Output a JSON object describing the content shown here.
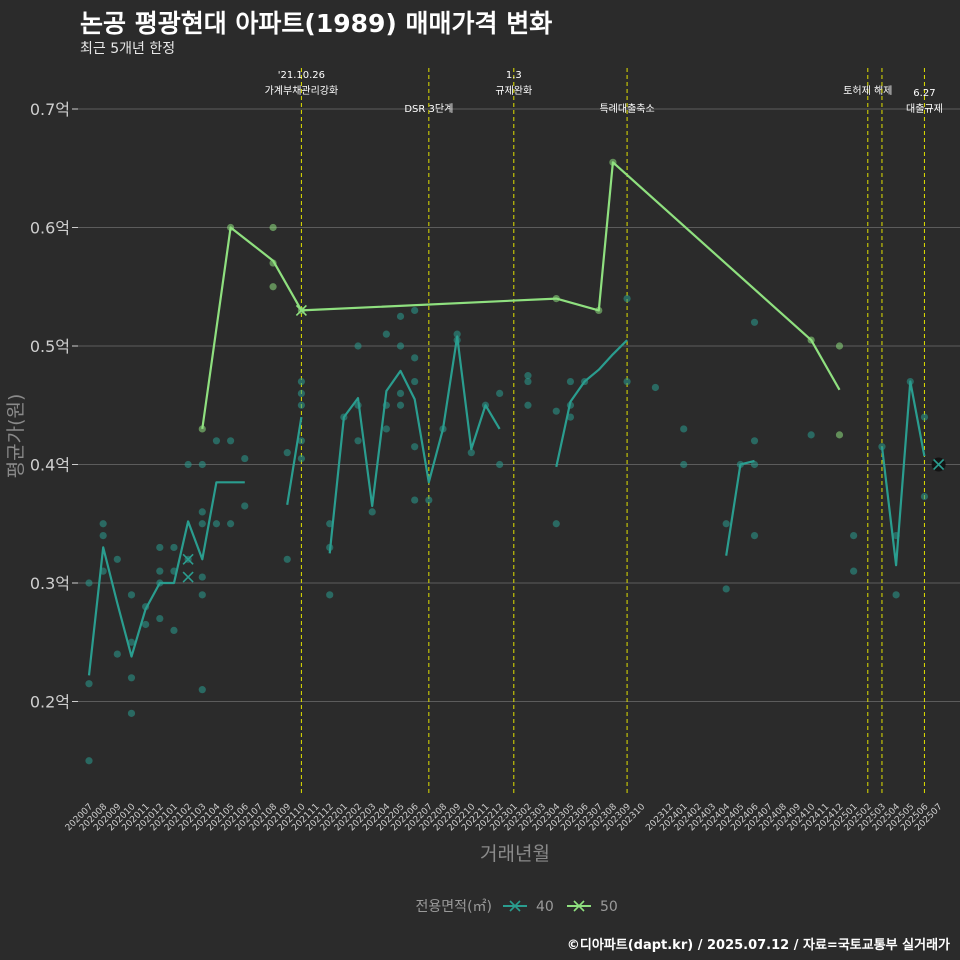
{
  "title": "논공 평광현대 아파트(1989) 매매가격 변화",
  "subtitle": "최근 5개년 한정",
  "caption": "©디아파트(dapt.kr) / 2025.07.12 / 자료=국토교통부 실거래가",
  "colors": {
    "background": "#2b2b2b",
    "grid": "#5c5c5c",
    "event_line": "#e0e000",
    "series_40": "#2a9d8f",
    "series_50": "#8fe07f"
  },
  "chart_data": {
    "type": "line",
    "title": "논공 평광현대 아파트(1989) 매매가격 변화",
    "subtitle": "최근 5개년 한정",
    "xlabel": "거래년월",
    "ylabel": "평균가(원)",
    "ylim": [
      0.12,
      0.735
    ],
    "yticks": [
      0.2,
      0.3,
      0.4,
      0.5,
      0.6,
      0.7
    ],
    "ytick_labels": [
      "0.2억",
      "0.3억",
      "0.4억",
      "0.5억",
      "0.6억",
      "0.7억"
    ],
    "grid": true,
    "legend_title": "전용면적(㎡)",
    "legend_position": "bottom",
    "x_labels": [
      "202007",
      "202008",
      "202009",
      "202010",
      "202011",
      "202012",
      "202101",
      "202102",
      "202103",
      "202104",
      "202105",
      "202106",
      "202107",
      "202108",
      "202109",
      "202110",
      "202111",
      "202112",
      "202201",
      "202202",
      "202203",
      "202204",
      "202205",
      "202206",
      "202207",
      "202208",
      "202209",
      "202210",
      "202211",
      "202212",
      "202301",
      "202302",
      "202303",
      "202304",
      "202305",
      "202306",
      "202307",
      "202308",
      "202309",
      "202310",
      "202312",
      "202401",
      "202402",
      "202403",
      "202404",
      "202405",
      "202406",
      "202407",
      "202408",
      "202409",
      "202410",
      "202411",
      "202412",
      "202501",
      "202502",
      "202503",
      "202504",
      "202505",
      "202506",
      "202507"
    ],
    "x_months": [
      0,
      1,
      2,
      3,
      4,
      5,
      6,
      7,
      8,
      9,
      10,
      11,
      12,
      13,
      14,
      15,
      16,
      17,
      18,
      19,
      20,
      21,
      22,
      23,
      24,
      25,
      26,
      27,
      28,
      29,
      30,
      31,
      32,
      33,
      34,
      35,
      36,
      37,
      38,
      39,
      41,
      42,
      43,
      44,
      45,
      46,
      47,
      48,
      49,
      50,
      51,
      52,
      53,
      54,
      55,
      56,
      57,
      58,
      59,
      60
    ],
    "events": [
      {
        "month": 15,
        "label": "'21.10.26\n가계부채관리강화",
        "row": 1
      },
      {
        "month": 24,
        "label": "DSR 3단계",
        "row": 2
      },
      {
        "month": 30,
        "label": "1.3\n규제완화",
        "row": 1
      },
      {
        "month": 38,
        "label": "특례대출축소",
        "row": 2
      },
      {
        "month": 55,
        "label": "토허제 해제",
        "row": 1
      },
      {
        "month": 56,
        "label": "",
        "row": 0
      },
      {
        "month": 59,
        "label": "6.27\n대출규제",
        "row": 2
      }
    ],
    "series": [
      {
        "name": "40",
        "segments": [
          [
            [
              0,
              0.222
            ],
            [
              1,
              0.33
            ],
            [
              2,
              0.283
            ],
            [
              3,
              0.238
            ],
            [
              4,
              0.278
            ],
            [
              5,
              0.3
            ],
            [
              6,
              0.3
            ],
            [
              7,
              0.352
            ],
            [
              8,
              0.32
            ],
            [
              9,
              0.385
            ],
            [
              10,
              0.385
            ],
            [
              11,
              0.385
            ]
          ],
          [
            [
              14,
              0.366
            ],
            [
              15,
              0.44
            ]
          ],
          [
            [
              17,
              0.325
            ],
            [
              18,
              0.44
            ],
            [
              19,
              0.456
            ],
            [
              20,
              0.365
            ],
            [
              21,
              0.462
            ],
            [
              22,
              0.479
            ],
            [
              23,
              0.455
            ],
            [
              24,
              0.385
            ],
            [
              25,
              0.43
            ],
            [
              26,
              0.508
            ],
            [
              27,
              0.413
            ],
            [
              28,
              0.45
            ],
            [
              29,
              0.43
            ]
          ],
          [
            [
              33,
              0.398
            ],
            [
              34,
              0.453
            ],
            [
              35,
              0.47
            ],
            [
              36,
              0.48
            ],
            [
              37,
              0.493
            ],
            [
              38,
              0.505
            ]
          ],
          [
            [
              45,
              0.323
            ],
            [
              46,
              0.4
            ],
            [
              47,
              0.403
            ]
          ],
          [
            [
              56,
              0.415
            ],
            [
              57,
              0.315
            ],
            [
              58,
              0.47
            ],
            [
              59,
              0.407
            ]
          ]
        ],
        "points": [
          [
            0,
            0.3
          ],
          [
            0,
            0.215
          ],
          [
            0,
            0.15
          ],
          [
            1,
            0.35
          ],
          [
            1,
            0.34
          ],
          [
            1,
            0.31
          ],
          [
            2,
            0.32
          ],
          [
            2,
            0.24
          ],
          [
            3,
            0.29
          ],
          [
            3,
            0.25
          ],
          [
            3,
            0.22
          ],
          [
            3,
            0.19
          ],
          [
            4,
            0.28
          ],
          [
            4,
            0.265
          ],
          [
            5,
            0.33
          ],
          [
            5,
            0.31
          ],
          [
            5,
            0.3
          ],
          [
            5,
            0.27
          ],
          [
            6,
            0.33
          ],
          [
            6,
            0.31
          ],
          [
            6,
            0.26
          ],
          [
            7,
            0.4
          ],
          [
            7,
            0.32
          ],
          [
            8,
            0.4
          ],
          [
            8,
            0.36
          ],
          [
            8,
            0.35
          ],
          [
            8,
            0.305
          ],
          [
            8,
            0.29
          ],
          [
            8,
            0.21
          ],
          [
            9,
            0.42
          ],
          [
            9,
            0.35
          ],
          [
            10,
            0.42
          ],
          [
            10,
            0.35
          ],
          [
            11,
            0.405
          ],
          [
            11,
            0.365
          ],
          [
            14,
            0.41
          ],
          [
            14,
            0.32
          ],
          [
            15,
            0.47
          ],
          [
            15,
            0.46
          ],
          [
            15,
            0.45
          ],
          [
            15,
            0.42
          ],
          [
            15,
            0.405
          ],
          [
            17,
            0.35
          ],
          [
            17,
            0.33
          ],
          [
            17,
            0.29
          ],
          [
            18,
            0.44
          ],
          [
            19,
            0.5
          ],
          [
            19,
            0.45
          ],
          [
            19,
            0.42
          ],
          [
            20,
            0.36
          ],
          [
            21,
            0.51
          ],
          [
            21,
            0.45
          ],
          [
            21,
            0.43
          ],
          [
            22,
            0.525
          ],
          [
            22,
            0.5
          ],
          [
            22,
            0.46
          ],
          [
            22,
            0.45
          ],
          [
            23,
            0.53
          ],
          [
            23,
            0.49
          ],
          [
            23,
            0.47
          ],
          [
            23,
            0.415
          ],
          [
            23,
            0.37
          ],
          [
            24,
            0.37
          ],
          [
            25,
            0.43
          ],
          [
            26,
            0.51
          ],
          [
            26,
            0.505
          ],
          [
            27,
            0.41
          ],
          [
            28,
            0.45
          ],
          [
            29,
            0.46
          ],
          [
            29,
            0.4
          ],
          [
            31,
            0.475
          ],
          [
            31,
            0.47
          ],
          [
            31,
            0.45
          ],
          [
            33,
            0.445
          ],
          [
            33,
            0.35
          ],
          [
            34,
            0.47
          ],
          [
            34,
            0.45
          ],
          [
            34,
            0.44
          ],
          [
            35,
            0.47
          ],
          [
            38,
            0.54
          ],
          [
            38,
            0.47
          ],
          [
            40,
            0.465
          ],
          [
            42,
            0.43
          ],
          [
            42,
            0.4
          ],
          [
            45,
            0.35
          ],
          [
            45,
            0.295
          ],
          [
            46,
            0.4
          ],
          [
            47,
            0.52
          ],
          [
            47,
            0.42
          ],
          [
            47,
            0.4
          ],
          [
            47,
            0.34
          ],
          [
            51,
            0.425
          ],
          [
            54,
            0.34
          ],
          [
            54,
            0.31
          ],
          [
            56,
            0.415
          ],
          [
            57,
            0.34
          ],
          [
            57,
            0.29
          ],
          [
            58,
            0.47
          ],
          [
            59,
            0.44
          ],
          [
            59,
            0.373
          ],
          [
            60,
            0.4
          ]
        ],
        "last_point": [
          60,
          0.4
        ],
        "cross_points": [
          [
            7,
            0.32
          ],
          [
            7,
            0.305
          ]
        ]
      },
      {
        "name": "50",
        "segments": [
          [
            [
              8,
              0.43
            ],
            [
              10,
              0.6
            ],
            [
              13,
              0.572
            ],
            [
              15,
              0.53
            ],
            [
              33,
              0.54
            ],
            [
              36,
              0.53
            ],
            [
              37,
              0.655
            ],
            [
              51,
              0.505
            ],
            [
              53,
              0.463
            ]
          ]
        ],
        "points": [
          [
            8,
            0.43
          ],
          [
            10,
            0.6
          ],
          [
            13,
            0.6
          ],
          [
            13,
            0.57
          ],
          [
            13,
            0.55
          ],
          [
            15,
            0.53
          ],
          [
            33,
            0.54
          ],
          [
            36,
            0.53
          ],
          [
            37,
            0.655
          ],
          [
            51,
            0.505
          ],
          [
            53,
            0.5
          ],
          [
            53,
            0.425
          ]
        ],
        "cross_points": [
          [
            15,
            0.53
          ]
        ]
      }
    ]
  }
}
